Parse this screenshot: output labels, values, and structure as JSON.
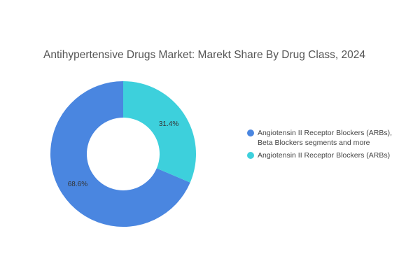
{
  "chart_data": {
    "type": "pie",
    "style": "donut",
    "title": "Antihypertensive Drugs Market: Marekt Share By Drug Class, 2024",
    "legend_position": "right",
    "slices": [
      {
        "label": "Angiotensin II Receptor Blockers (ARBs), Beta Blockers segments and more",
        "legend_lines": [
          "Angiotensin II Receptor Blockers (ARBs),",
          "Beta Blockers segments and more"
        ],
        "value": 68.6,
        "display": "68.6%",
        "color": "#4a86e0"
      },
      {
        "label": "Angiotensin II Receptor Blockers (ARBs)",
        "legend_lines": [
          "Angiotensin II Receptor Blockers (ARBs)"
        ],
        "value": 31.4,
        "display": "31.4%",
        "color": "#3dd0dc"
      }
    ]
  }
}
